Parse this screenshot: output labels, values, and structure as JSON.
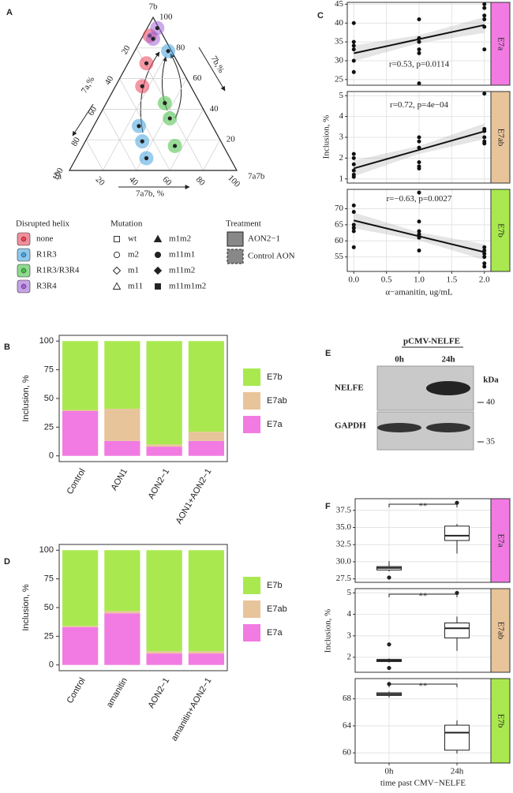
{
  "chart_data": [
    {
      "type": "ternary",
      "panel": "A",
      "vertex_labels": {
        "top": "7b",
        "left": "7a",
        "right": "7a7b"
      },
      "axis_labels": {
        "a": "7a,%",
        "b": "7b,%",
        "ab": "7a7b, %"
      },
      "ticks": [
        20,
        40,
        60,
        80,
        100
      ],
      "series": [
        {
          "name": "none",
          "color": "#e9445a",
          "points": [
            [
              8,
              88,
              4
            ],
            [
              19,
              70,
              11
            ],
            [
              29,
              55,
              16
            ]
          ]
        },
        {
          "name": "R1R3",
          "color": "#45a3de",
          "points": [
            [
              2,
              78,
              20
            ],
            [
              47,
              19,
              34
            ],
            [
              44,
              29,
              27
            ],
            [
              50,
              8,
              42
            ]
          ]
        },
        {
          "name": "R1R3/R3R4",
          "color": "#46bf46",
          "points": [
            [
              23,
              34,
              43
            ],
            [
              29,
              16,
              55
            ],
            [
              21,
              44,
              35
            ]
          ]
        },
        {
          "name": "R3R4",
          "color": "#a064d6",
          "points": [
            [
              7,
              86,
              7
            ],
            [
              1,
              93,
              6
            ]
          ]
        }
      ],
      "legend_title": "Disrupted helix",
      "mutation_title": "Mutation",
      "mutations": [
        "wt",
        "m2",
        "m1",
        "m11",
        "m1m2",
        "m11m1",
        "m11m2",
        "m11m1m2"
      ],
      "treatment_title": "Treatment",
      "treatments": [
        "AON2−1",
        "Control AON"
      ]
    },
    {
      "type": "stacked_bar",
      "panel": "B",
      "y_label": "Inclusion, %",
      "categories": [
        "Control",
        "AON1",
        "AON2−1",
        "AON1+AON2−1"
      ],
      "series": [
        {
          "name": "E7a",
          "color": "#f17be2",
          "values": [
            39,
            13,
            8,
            13
          ]
        },
        {
          "name": "E7ab",
          "color": "#e8c49a",
          "values": [
            1,
            28,
            2,
            8
          ]
        },
        {
          "name": "E7b",
          "color": "#a9e94f",
          "values": [
            60,
            59,
            90,
            79
          ]
        }
      ],
      "ylim": [
        -5,
        105
      ],
      "yticks": [
        0,
        25,
        50,
        75,
        100
      ]
    },
    {
      "type": "facet_scatter",
      "panel": "C",
      "x_label": "α−amanitin, ug/mL",
      "y_label": "Inclusion, %",
      "xlim": [
        -0.1,
        2.1
      ],
      "xticks": [
        {
          "value": 0,
          "label": "0.0"
        },
        0.5,
        {
          "value": 1,
          "label": "1.0"
        },
        1.5,
        {
          "value": 2,
          "label": "2.0"
        }
      ],
      "facets": [
        {
          "name": "E7a",
          "color": "#f17be2",
          "annotation": "r=0.53, p=0.0114",
          "ylim": [
            23.5,
            45.5
          ],
          "yticks": [
            25,
            30,
            35,
            40,
            45
          ],
          "x": [
            0,
            0,
            0,
            0,
            0,
            0,
            1,
            1,
            1,
            1,
            1,
            1,
            1,
            2,
            2,
            2,
            2,
            2,
            2
          ],
          "y": [
            40,
            35,
            34,
            33,
            30,
            27,
            41,
            36,
            35,
            35,
            33,
            32,
            24,
            45,
            44,
            42,
            41,
            39,
            33
          ]
        },
        {
          "name": "E7ab",
          "color": "#e8c49a",
          "annotation": "r=0.72, p=4e−04",
          "ylim": [
            0.8,
            5.2
          ],
          "yticks": [
            1,
            2,
            3,
            4,
            5
          ],
          "x": [
            0,
            0,
            0,
            0,
            0,
            0,
            1,
            1,
            1,
            1,
            1,
            1,
            2,
            2,
            2,
            2,
            2,
            2
          ],
          "y": [
            2.2,
            2.0,
            1.7,
            1.4,
            1.2,
            1.1,
            3.0,
            2.8,
            2.5,
            1.8,
            1.6,
            1.5,
            5.1,
            3.4,
            3.3,
            3.0,
            2.8,
            2.7
          ]
        },
        {
          "name": "E7b",
          "color": "#a9e94f",
          "annotation": "r=−0.63, p=0.0027",
          "ylim": [
            50.5,
            76
          ],
          "yticks": [
            55,
            60,
            65,
            70
          ],
          "x": [
            0,
            0,
            0,
            0,
            0,
            0,
            1,
            1,
            1,
            1,
            1,
            1,
            1,
            2,
            2,
            2,
            2,
            2,
            2
          ],
          "y": [
            71,
            69,
            65,
            64,
            63,
            58,
            75,
            66,
            63,
            62,
            62,
            61,
            57,
            58,
            57,
            56,
            55,
            53,
            52
          ]
        }
      ]
    },
    {
      "type": "stacked_bar",
      "panel": "D",
      "y_label": "Inclusion, %",
      "categories": [
        "Control",
        "amanitin",
        "AON2−1",
        "amanitin+AON2−1"
      ],
      "series": [
        {
          "name": "E7a",
          "color": "#f17be2",
          "values": [
            33,
            45,
            10,
            10
          ]
        },
        {
          "name": "E7ab",
          "color": "#e8c49a",
          "values": [
            1,
            2,
            2,
            2
          ]
        },
        {
          "name": "E7b",
          "color": "#a9e94f",
          "values": [
            66,
            53,
            88,
            88
          ]
        }
      ],
      "ylim": [
        -5,
        105
      ],
      "yticks": [
        0,
        25,
        50,
        75,
        100
      ]
    },
    {
      "type": "blot",
      "panel": "E",
      "title": "pCMV-NELFE",
      "lanes": [
        "0h",
        "24h"
      ],
      "unit": "kDa",
      "rows": [
        {
          "name": "NELFE",
          "marker": 40
        },
        {
          "name": "GAPDH",
          "marker": 35
        }
      ]
    },
    {
      "type": "facet_box",
      "panel": "F",
      "x_label": "time past CMV−NELFE",
      "y_label": "Inclusion, %",
      "categories": [
        "0h",
        "24h"
      ],
      "facets": [
        {
          "name": "E7a",
          "color": "#f17be2",
          "significance": "**",
          "ylim": [
            27,
            39.2
          ],
          "yticks": [
            27.5,
            {
              "value": 30,
              "label": "30.0"
            },
            32.5,
            {
              "value": 35,
              "label": "35.0"
            },
            37.5
          ],
          "boxes": [
            {
              "min": 28.6,
              "q1": 28.8,
              "median": 29.1,
              "q3": 29.3,
              "max": 30.1,
              "outliers": [
                27.7
              ]
            },
            {
              "min": 31.2,
              "q1": 33.1,
              "median": 33.8,
              "q3": 35.2,
              "max": 35.5,
              "outliers": [
                38.6
              ]
            }
          ]
        },
        {
          "name": "E7ab",
          "color": "#e8c49a",
          "significance": "**",
          "ylim": [
            1.3,
            5.2
          ],
          "yticks": [
            2,
            3,
            4,
            5
          ],
          "boxes": [
            {
              "min": 1.75,
              "q1": 1.8,
              "median": 1.85,
              "q3": 1.9,
              "max": 1.95,
              "outliers": [
                2.6,
                1.5
              ]
            },
            {
              "min": 2.3,
              "q1": 2.9,
              "median": 3.35,
              "q3": 3.6,
              "max": 3.9,
              "outliers": [
                5
              ]
            }
          ]
        },
        {
          "name": "E7b",
          "color": "#a9e94f",
          "significance": "**",
          "ylim": [
            58.5,
            71
          ],
          "yticks": [
            60,
            64,
            68
          ],
          "boxes": [
            {
              "min": 68.2,
              "q1": 68.5,
              "median": 68.7,
              "q3": 68.9,
              "max": 69.1,
              "outliers": [
                70.2
              ]
            },
            {
              "min": 59.9,
              "q1": 60.4,
              "median": 63,
              "q3": 64.1,
              "max": 64.8,
              "outliers": []
            }
          ]
        }
      ]
    }
  ]
}
